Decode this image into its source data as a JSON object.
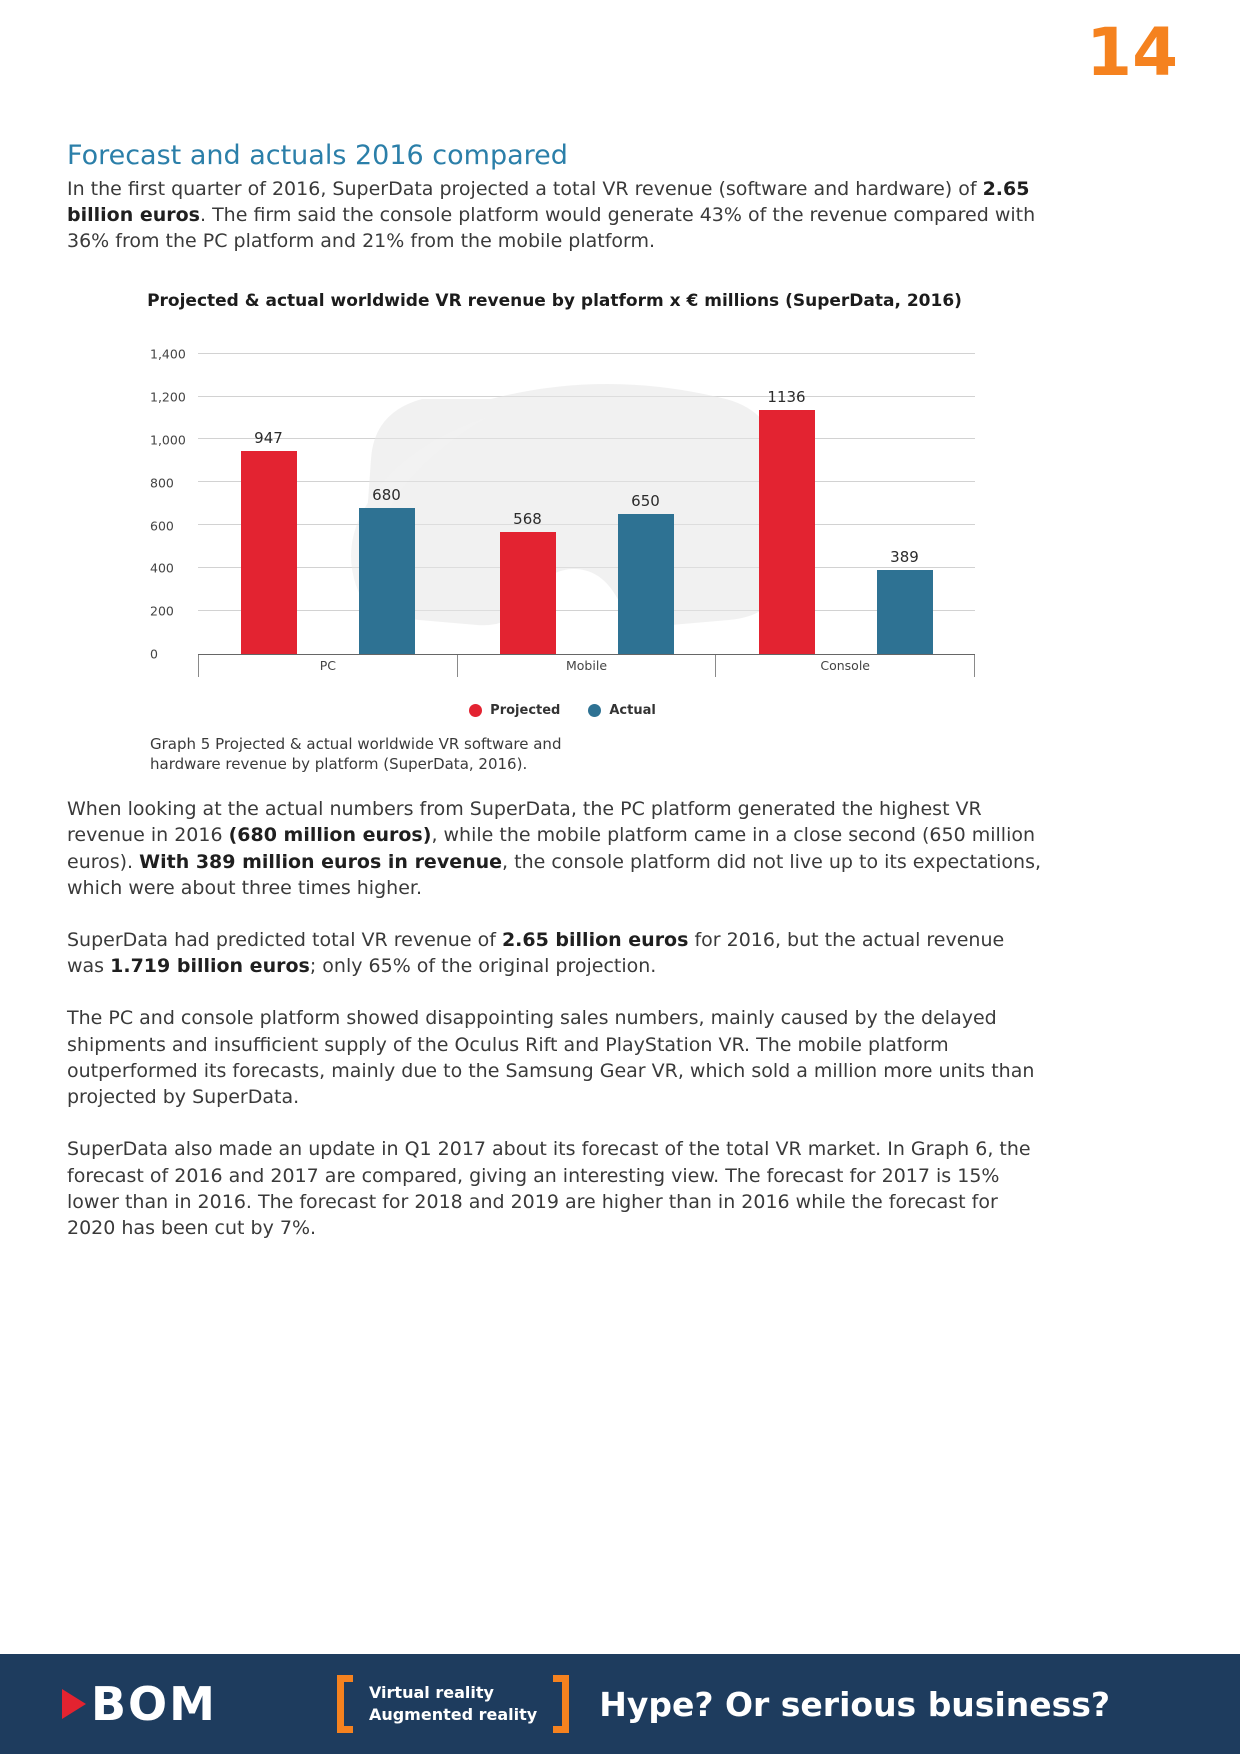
{
  "page_number": "14",
  "heading": "Forecast and actuals 2016 compared",
  "intro": [
    {
      "t": "In the first quarter of 2016, SuperData projected a total VR revenue (software and hardware) of "
    },
    {
      "t": "2.65 billion euros",
      "b": true
    },
    {
      "t": ". The firm said the console platform would generate 43% of the revenue compared with 36% from the PC platform and 21% from the mobile platform."
    }
  ],
  "chart_data": {
    "type": "bar",
    "title": "Projected & actual worldwide VR revenue by platform x € millions (SuperData, 2016)",
    "categories": [
      "PC",
      "Mobile",
      "Console"
    ],
    "series": [
      {
        "name": "Projected",
        "color": "#e32331",
        "values": [
          947,
          568,
          1136
        ]
      },
      {
        "name": "Actual",
        "color": "#2e7293",
        "values": [
          680,
          650,
          389
        ]
      }
    ],
    "ylim": [
      0,
      1400
    ],
    "yticks": [
      {
        "v": 1400,
        "label": "1,400"
      },
      {
        "v": 1200,
        "label": "1,200"
      },
      {
        "v": 1000,
        "label": "1,000"
      },
      {
        "v": 800,
        "label": "800"
      },
      {
        "v": 600,
        "label": "600"
      },
      {
        "v": 400,
        "label": "400"
      },
      {
        "v": 200,
        "label": "200"
      },
      {
        "v": 0,
        "label": "0"
      }
    ],
    "grid": true,
    "legend_position": "bottom"
  },
  "caption": "Graph 5 Projected & actual worldwide VR software and\nhardware revenue by platform (SuperData, 2016).",
  "paragraphs": [
    [
      {
        "t": "When looking at the actual numbers from SuperData, the PC platform generated the highest VR revenue in 2016 "
      },
      {
        "t": "(680 million euros)",
        "b": true
      },
      {
        "t": ", while the mobile platform came in a close second (650 million euros). "
      },
      {
        "t": "With 389 million euros in revenue",
        "b": true
      },
      {
        "t": ", the console platform did not live up to its expectations, which were about three times higher."
      }
    ],
    [
      {
        "t": "SuperData had predicted total VR revenue of "
      },
      {
        "t": "2.65 billion euros",
        "b": true
      },
      {
        "t": " for 2016, but the actual revenue was "
      },
      {
        "t": "1.719 billion euros",
        "b": true
      },
      {
        "t": "; only 65% of the original projection."
      }
    ],
    [
      {
        "t": "The PC and console platform showed disappointing sales numbers, mainly caused by the delayed shipments and insufficient supply of the Oculus Rift and PlayStation VR. The mobile platform outperformed its forecasts, mainly due to the Samsung Gear VR, which sold a million more units than projected by SuperData."
      }
    ],
    [
      {
        "t": "SuperData also made an update in Q1 2017 about its forecast of the total VR market. In Graph 6, the forecast of 2016 and 2017 are compared, giving an interesting view. The forecast for 2017 is 15% lower than in 2016. The forecast for 2018 and 2019 are higher than in 2016 while the forecast for 2020 has been cut by 7%."
      }
    ]
  ],
  "footer": {
    "logo": "BOM",
    "tagline_line1": "Virtual reality",
    "tagline_line2": "Augmented reality",
    "headline": "Hype? Or serious business?"
  },
  "colors": {
    "accent_orange": "#f5821f",
    "heading_blue": "#2b7fa9",
    "footer_navy": "#1e3c5e",
    "bar_projected_red": "#e32331",
    "bar_actual_blue": "#2e7293"
  }
}
